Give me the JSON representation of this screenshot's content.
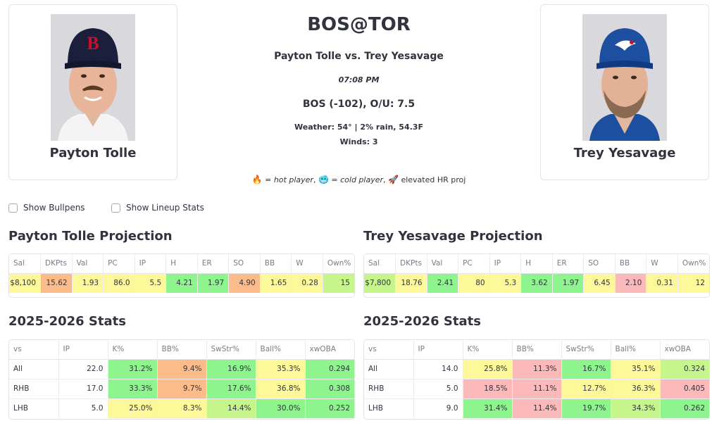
{
  "away": {
    "name": "Payton Tolle",
    "cap_color": "#1b1f3b",
    "cap_logo": "B",
    "cap_logo_color": "#c8102e"
  },
  "home": {
    "name": "Trey Yesavage",
    "cap_color": "#1d4fa1",
    "cap_logo": "TOR",
    "cap_logo_color": "#ffffff"
  },
  "game": {
    "matchup": "BOS@TOR",
    "vs_line": "Payton Tolle vs. Trey Yesavage",
    "time": "07:08 PM",
    "odds": "BOS (-102), O/U: 7.5",
    "weather": "Weather: 54° | 2% rain, 54.3F",
    "winds": "Winds: 3"
  },
  "legend": {
    "hot_icon": "🔥",
    "hot_text": "= hot player",
    "cold_icon": "🥶",
    "cold_text": "= cold player",
    "hr_icon": "🚀",
    "hr_text": "elevated HR proj"
  },
  "options": {
    "bullpens": "Show Bullpens",
    "lineup": "Show Lineup Stats"
  },
  "projection_headers": [
    "Sal",
    "DKPts",
    "Val",
    "PC",
    "IP",
    "H",
    "ER",
    "SO",
    "BB",
    "W",
    "Own%"
  ],
  "stats_headers": [
    "vs",
    "IP",
    "K%",
    "BB%",
    "SwStr%",
    "Ball%",
    "xwOBA"
  ],
  "away_projection": {
    "title": "Payton Tolle Projection",
    "values": [
      "$8,100",
      "15.62",
      "1.93",
      "86.0",
      "5.5",
      "4.21",
      "1.97",
      "4.90",
      "1.65",
      "0.28",
      "15"
    ],
    "colors": [
      "y",
      "o",
      "y",
      "y",
      "y",
      "g",
      "g",
      "o",
      "y",
      "y",
      "lg"
    ]
  },
  "home_projection": {
    "title": "Trey Yesavage Projection",
    "values": [
      "$7,800",
      "18.76",
      "2.41",
      "80",
      "5.3",
      "3.62",
      "1.97",
      "6.45",
      "2.10",
      "0.31",
      "12"
    ],
    "colors": [
      "lg",
      "y",
      "g",
      "y",
      "y",
      "g",
      "g",
      "y",
      "r",
      "y",
      "y"
    ]
  },
  "away_stats": {
    "title": "2025-2026 Stats",
    "rows": [
      {
        "vs": "All",
        "vals": [
          "22.0",
          "31.2%",
          "9.4%",
          "16.9%",
          "35.3%",
          "0.294"
        ],
        "colors": [
          "w",
          "g",
          "o",
          "g",
          "y",
          "g"
        ]
      },
      {
        "vs": "RHB",
        "vals": [
          "17.0",
          "33.3%",
          "9.7%",
          "17.6%",
          "36.8%",
          "0.308"
        ],
        "colors": [
          "w",
          "g",
          "o",
          "g",
          "y",
          "g"
        ]
      },
      {
        "vs": "LHB",
        "vals": [
          "5.0",
          "25.0%",
          "8.3%",
          "14.4%",
          "30.0%",
          "0.252"
        ],
        "colors": [
          "w",
          "y",
          "y",
          "lg",
          "g",
          "g"
        ]
      }
    ]
  },
  "home_stats": {
    "title": "2025-2026 Stats",
    "rows": [
      {
        "vs": "All",
        "vals": [
          "14.0",
          "25.8%",
          "11.3%",
          "16.7%",
          "35.1%",
          "0.324"
        ],
        "colors": [
          "w",
          "y",
          "r",
          "g",
          "y",
          "lg"
        ]
      },
      {
        "vs": "RHB",
        "vals": [
          "5.0",
          "18.5%",
          "11.1%",
          "12.7%",
          "36.3%",
          "0.405"
        ],
        "colors": [
          "w",
          "r",
          "r",
          "y",
          "y",
          "r"
        ]
      },
      {
        "vs": "LHB",
        "vals": [
          "9.0",
          "31.4%",
          "11.4%",
          "19.7%",
          "34.3%",
          "0.262"
        ],
        "colors": [
          "w",
          "g",
          "r",
          "g",
          "lg",
          "g"
        ]
      }
    ]
  }
}
